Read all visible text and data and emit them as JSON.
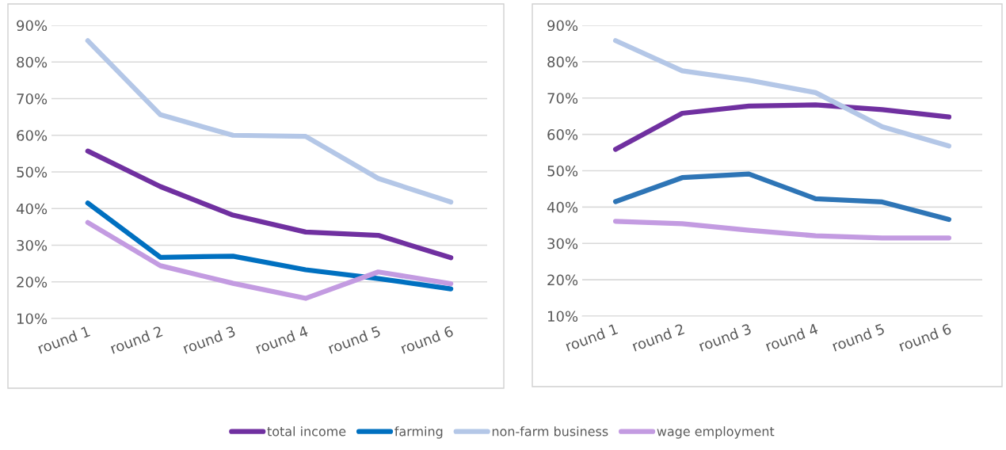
{
  "chart_data": [
    {
      "type": "line",
      "categories": [
        "round 1",
        "round 2",
        "round 3",
        "round 4",
        "round 5",
        "round 6"
      ],
      "series": [
        {
          "name": "total income",
          "color": "#7030a0",
          "values": [
            55.7,
            46.0,
            38.2,
            33.6,
            32.7,
            26.6
          ]
        },
        {
          "name": "farming",
          "color": "#0070c0",
          "values": [
            41.5,
            26.7,
            27.0,
            23.3,
            20.9,
            18.1
          ]
        },
        {
          "name": "non-farm business",
          "color": "#b4c7e7",
          "values": [
            85.8,
            65.6,
            60.0,
            59.7,
            48.2,
            41.8
          ]
        },
        {
          "name": "wage employment",
          "color": "#c39be1",
          "values": [
            36.2,
            24.4,
            19.6,
            15.5,
            22.7,
            19.5
          ]
        }
      ],
      "ylim": [
        10,
        90
      ],
      "yticks": [
        {
          "value": 10,
          "label": "10%"
        },
        {
          "value": 20,
          "label": "20%"
        },
        {
          "value": 30,
          "label": "30%"
        },
        {
          "value": 40,
          "label": "40%"
        },
        {
          "value": 50,
          "label": "50%"
        },
        {
          "value": 60,
          "label": "60%"
        },
        {
          "value": 70,
          "label": "70%"
        },
        {
          "value": 80,
          "label": "80%"
        },
        {
          "value": 90,
          "label": "90%"
        }
      ],
      "grid": "y",
      "legend": "bottom",
      "marker": "none",
      "line_style": "solid"
    },
    {
      "type": "line",
      "categories": [
        "round 1",
        "round 2",
        "round 3",
        "round 4",
        "round 5",
        "round 6"
      ],
      "series": [
        {
          "color": "#7030a0",
          "values": [
            55.9,
            65.8,
            67.8,
            68.1,
            66.8,
            64.8
          ]
        },
        {
          "color": "#2e75b6",
          "values": [
            41.5,
            48.1,
            49.1,
            42.3,
            41.4,
            36.6
          ]
        },
        {
          "color": "#b4c7e7",
          "values": [
            85.8,
            77.5,
            74.9,
            71.5,
            62.1,
            56.8
          ]
        },
        {
          "color": "#c39be1",
          "values": [
            36.1,
            35.4,
            33.6,
            32.1,
            31.5,
            31.5
          ]
        }
      ],
      "ylim": [
        10,
        90
      ],
      "yticks": [
        {
          "value": 10,
          "label": "10%"
        },
        {
          "value": 20,
          "label": "20%"
        },
        {
          "value": 30,
          "label": "30%"
        },
        {
          "value": 40,
          "label": "40%"
        },
        {
          "value": 50,
          "label": "50%"
        },
        {
          "value": 60,
          "label": "60%"
        },
        {
          "value": 70,
          "label": "70%"
        },
        {
          "value": 80,
          "label": "80%"
        },
        {
          "value": 90,
          "label": "90%"
        }
      ],
      "grid": "y",
      "marker": "none",
      "line_style": "solid"
    }
  ]
}
